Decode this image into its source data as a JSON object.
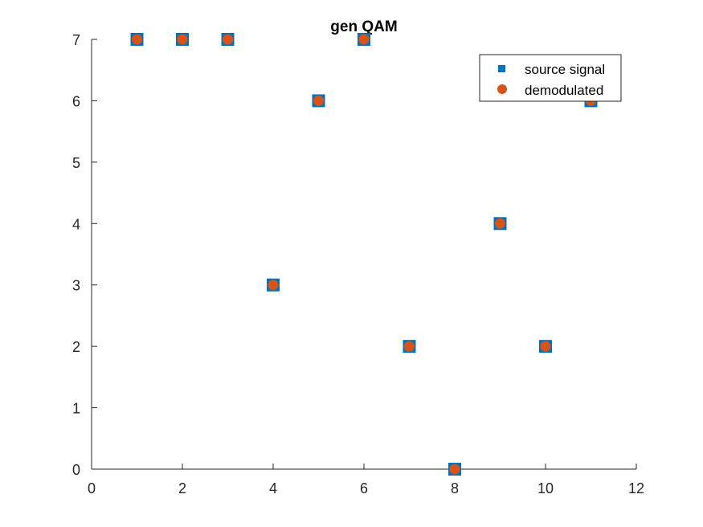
{
  "chart_data": {
    "type": "scatter",
    "title": "gen QAM",
    "xlabel": "",
    "ylabel": "",
    "xlim": [
      0,
      12
    ],
    "ylim": [
      0,
      7
    ],
    "xticks": [
      "0",
      "2",
      "4",
      "6",
      "8",
      "10",
      "12"
    ],
    "yticks": [
      "0",
      "1",
      "2",
      "3",
      "4",
      "5",
      "6",
      "7"
    ],
    "grid": false,
    "legend_position": "top-right",
    "x": [
      1,
      2,
      3,
      4,
      5,
      6,
      7,
      8,
      9,
      10,
      11
    ],
    "series": [
      {
        "name": "source signal",
        "marker": "square",
        "color": "#0072BD",
        "values": [
          7,
          7,
          7,
          3,
          6,
          7,
          2,
          0,
          4,
          2,
          6
        ]
      },
      {
        "name": "demodulated",
        "marker": "circle",
        "color": "#D95319",
        "values": [
          7,
          7,
          7,
          3,
          6,
          7,
          2,
          0,
          4,
          2,
          6
        ]
      }
    ]
  }
}
